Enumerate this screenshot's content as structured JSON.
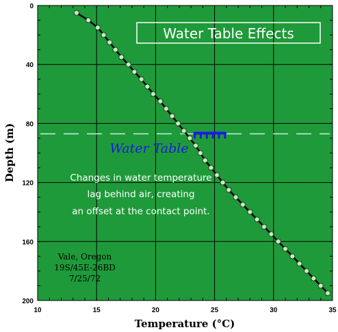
{
  "chart_data": {
    "type": "scatter",
    "title": "Water Table Effects",
    "xlabel": "Temperature (°C)",
    "ylabel": "Depth (m)",
    "xlim": [
      10,
      35
    ],
    "ylim": [
      0,
      200
    ],
    "y_inverted": true,
    "x_ticks": [
      "10",
      "15",
      "20",
      "25",
      "30",
      "35"
    ],
    "y_ticks": [
      "0",
      "40",
      "80",
      "120",
      "160",
      "200"
    ],
    "grid": true,
    "background_color": "#1f9a3a",
    "marker_color": "#c8f0c0",
    "line_color": "#000000",
    "series": [
      {
        "x": [
          13.3,
          14.3,
          15.1,
          15.6,
          16.1,
          16.6,
          17.1,
          17.7,
          18.2,
          18.8,
          19.3,
          19.8,
          20.4,
          20.9,
          21.4,
          21.9,
          22.4,
          22.9,
          23.4,
          23.8,
          24.2,
          24.7,
          25.2,
          25.7,
          26.2,
          26.8,
          27.4,
          28.0,
          28.6,
          29.2,
          29.8,
          30.4,
          31.0,
          31.6,
          32.2,
          32.8,
          33.4,
          34.0,
          34.6
        ],
        "y": [
          5,
          10,
          15,
          20,
          25,
          30,
          35,
          40,
          45,
          50,
          55,
          60,
          65,
          70,
          75,
          80,
          85,
          90,
          95,
          100,
          105,
          110,
          115,
          120,
          125,
          130,
          135,
          140,
          145,
          150,
          155,
          160,
          165,
          170,
          175,
          180,
          185,
          190,
          195
        ]
      }
    ],
    "annotations": {
      "water_table_label": "Water Table",
      "water_table_depth": 87,
      "note_lines": [
        "Changes in water temperature",
        "lag behind air, creating",
        "an offset at the contact point."
      ],
      "location_lines": [
        "Vale, Oregon",
        "19S/45E-26BD",
        "7/25/72"
      ]
    }
  }
}
